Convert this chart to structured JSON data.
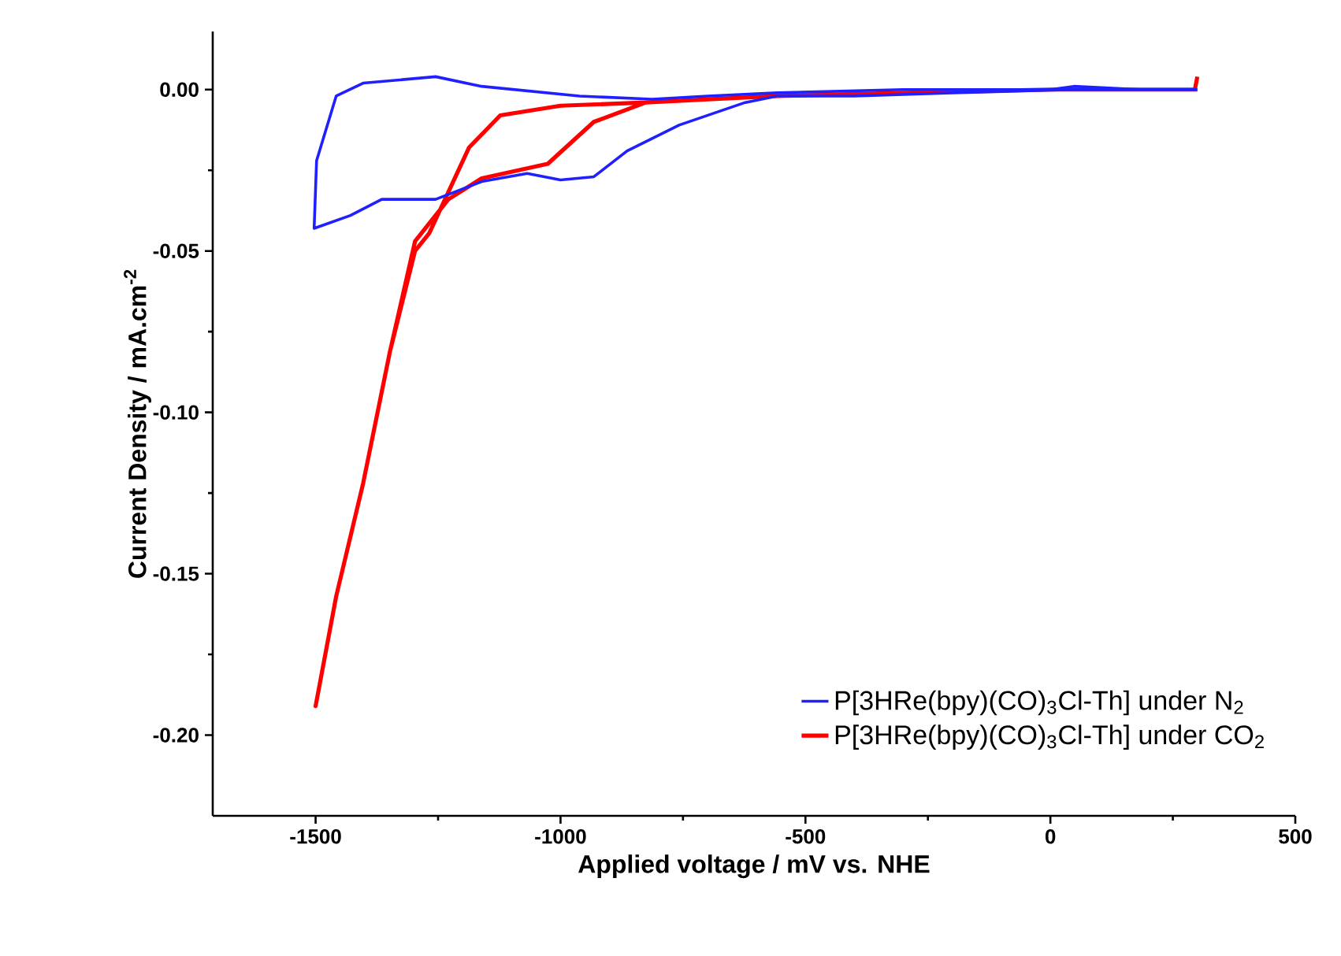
{
  "chart_data": {
    "type": "line",
    "xlabel": "Applied voltage / mV vs. NHE",
    "ylabel": "Current Density / mA.cm$^{-2}$",
    "xlim": [
      -1710,
      500
    ],
    "ylim": [
      -0.225,
      0.018
    ],
    "xticks": [
      -1500,
      {
        "value": -1250,
        "label": null
      },
      -1000,
      {
        "value": -750,
        "label": null
      },
      -500,
      {
        "value": -250,
        "label": null
      },
      0,
      {
        "value": 250,
        "label": null
      },
      500
    ],
    "yticks": [
      {
        "value": 0,
        "label": "0.00"
      },
      {
        "value": -0.025,
        "label": null
      },
      {
        "value": -0.05,
        "label": "-0.05"
      },
      {
        "value": -0.075,
        "label": null
      },
      {
        "value": -0.1,
        "label": "-0.10"
      },
      {
        "value": -0.125,
        "label": null
      },
      {
        "value": -0.15,
        "label": "-0.15"
      },
      {
        "value": -0.175,
        "label": null
      },
      {
        "value": -0.2,
        "label": "-0.20"
      }
    ],
    "legend": "bottom right",
    "series": [
      {
        "name": "P[3HRe(bpy)(CO)$_{3}$Cl-Th] under N$_{2}$",
        "color": "#2020ff",
        "line_style": "solid",
        "x": [
          300,
          184,
          48,
          -200,
          -400,
          -558,
          -623,
          -758,
          -864,
          -932,
          -1000,
          -1068,
          -1161,
          -1255,
          -1365,
          -1429,
          -1503,
          -1498,
          -1458,
          -1403,
          -1255,
          -1161,
          -961,
          -813,
          -700,
          -558,
          -300,
          0,
          48,
          184,
          296
        ],
        "values": [
          0,
          0,
          0,
          -0.001,
          -0.002,
          -0.002,
          -0.004,
          -0.011,
          -0.019,
          -0.027,
          -0.028,
          -0.026,
          -0.0285,
          -0.034,
          -0.034,
          -0.039,
          -0.043,
          -0.022,
          -0.002,
          0.002,
          0.004,
          0.001,
          -0.002,
          -0.003,
          -0.002,
          -0.001,
          0,
          0,
          0.001,
          0,
          0
        ]
      },
      {
        "name": "P[3HRe(bpy)(CO)$_{3}$Cl-Th] under CO$_{2}$",
        "color": "#ff0000",
        "line_style": "solid",
        "x": [
          300,
          295,
          200,
          0,
          -300,
          -558,
          -700,
          -826,
          -932,
          -1026,
          -1161,
          -1229,
          -1297,
          -1348,
          -1403,
          -1458,
          -1500,
          -1458,
          -1403,
          -1348,
          -1297,
          -1268,
          -1187,
          -1123,
          -1000,
          -826,
          -700,
          -558,
          -300,
          0,
          200,
          300
        ],
        "values": [
          0.004,
          0,
          0,
          0,
          -0.001,
          -0.002,
          -0.003,
          -0.004,
          -0.01,
          -0.023,
          -0.0275,
          -0.034,
          -0.047,
          -0.081,
          -0.122,
          -0.157,
          -0.191,
          -0.157,
          -0.122,
          -0.081,
          -0.05,
          -0.0445,
          -0.018,
          -0.008,
          -0.005,
          -0.004,
          -0.003,
          -0.002,
          -0.001,
          0,
          0,
          0
        ]
      }
    ]
  }
}
